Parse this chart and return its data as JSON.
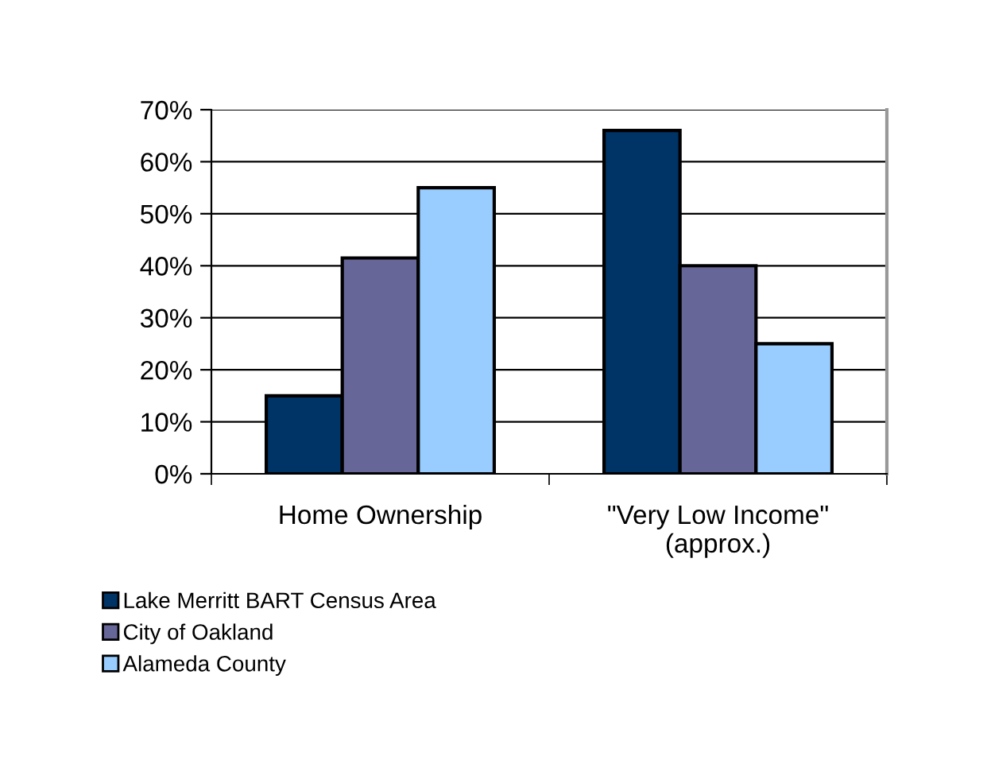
{
  "chart_data": {
    "type": "bar",
    "categories": [
      "Home Ownership",
      "\"Very Low Income\"\n(approx.)"
    ],
    "series": [
      {
        "name": "Lake Merritt BART Census Area",
        "color": "#003366",
        "values": [
          15,
          66
        ]
      },
      {
        "name": "City of Oakland",
        "color": "#666699",
        "values": [
          41.5,
          40
        ]
      },
      {
        "name": "Alameda County",
        "color": "#99ccff",
        "values": [
          55,
          25
        ]
      }
    ],
    "ylim": [
      0,
      70
    ],
    "yticks": [
      {
        "value": 0,
        "label": "0%"
      },
      {
        "value": 10,
        "label": "10%"
      },
      {
        "value": 20,
        "label": "20%"
      },
      {
        "value": 30,
        "label": "30%"
      },
      {
        "value": 40,
        "label": "40%"
      },
      {
        "value": 50,
        "label": "50%"
      },
      {
        "value": 60,
        "label": "60%"
      },
      {
        "value": 70,
        "label": "70%"
      }
    ],
    "grid": "y",
    "legend": "bottom"
  }
}
